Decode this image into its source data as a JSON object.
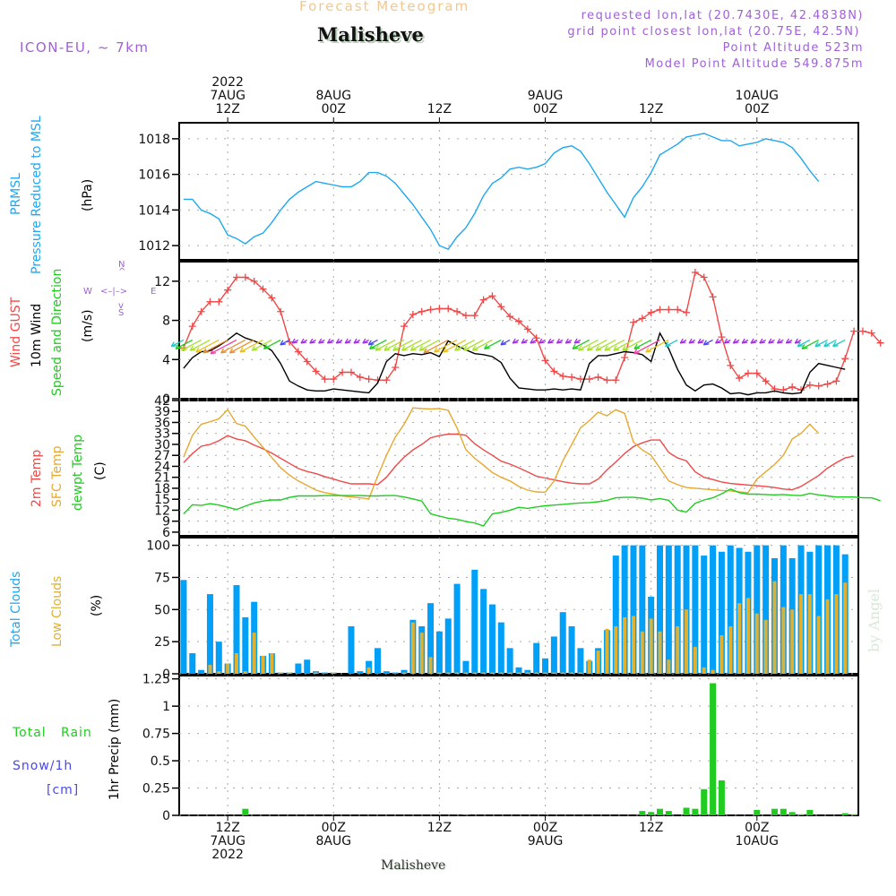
{
  "header": {
    "chart_type_title": "Forecast Meteogram",
    "station": "Malisheve",
    "model": "ICON-EU, ~ 7km",
    "requested": "requested lon,lat (20.7430E, 42.4838N)",
    "grid_point": "grid point closest lon,lat (20.75E, 42.5N)",
    "point_altitude": "Point Altitude 523m",
    "model_altitude": "Model Point Altitude 549.875m",
    "footer_station": "Malisheve",
    "watermark": "by Angel"
  },
  "colors": {
    "pressure": "#1ea8f0",
    "gust": "#f04848",
    "wind": "#000000",
    "t2m": "#f04848",
    "sfc": "#e8a830",
    "dewpt": "#20cc20",
    "total_clouds": "#00a0f8",
    "low_clouds": "#e0b030",
    "rain": "#20cc20",
    "snow": "#4848f0",
    "info": "#a060d8"
  },
  "time_axis": {
    "top_labels": [
      {
        "lines": [
          "2022",
          "7AUG",
          "12Z"
        ],
        "hour": 12
      },
      {
        "lines": [
          "8AUG",
          "00Z"
        ],
        "hour": 24
      },
      {
        "lines": [
          "12Z"
        ],
        "hour": 36
      },
      {
        "lines": [
          "9AUG",
          "00Z"
        ],
        "hour": 48
      },
      {
        "lines": [
          "12Z"
        ],
        "hour": 60
      },
      {
        "lines": [
          "10AUG",
          "00Z"
        ],
        "hour": 72
      }
    ],
    "bottom_labels": [
      {
        "lines": [
          "12Z",
          "7AUG",
          "2022"
        ],
        "hour": 12
      },
      {
        "lines": [
          "00Z",
          "8AUG"
        ],
        "hour": 24
      },
      {
        "lines": [
          "12Z"
        ],
        "hour": 36
      },
      {
        "lines": [
          "00Z",
          "9AUG"
        ],
        "hour": 48
      },
      {
        "lines": [
          "12Z"
        ],
        "hour": 60
      },
      {
        "lines": [
          "00Z",
          "10AUG"
        ],
        "hour": 72
      }
    ],
    "hour_range": [
      6.5,
      83.5
    ],
    "note": "hour = hours since 7AUG 00Z"
  },
  "chart_data": [
    {
      "type": "line",
      "title": "PRMSL Pressure Reduced to MSL",
      "ylabel_lines": [
        "PRMSL",
        "Pressure Reduced to MSL"
      ],
      "unit": "(hPa)",
      "ylim": [
        1011.2,
        1018.9
      ],
      "yticks": [
        1012,
        1014,
        1016,
        1018
      ],
      "x_start_hour": 7,
      "x_step_hours": 1,
      "series": [
        {
          "name": "PRMSL",
          "color_key": "pressure",
          "values": [
            1014.6,
            1014.6,
            1014.0,
            1013.8,
            1013.5,
            1012.6,
            1012.4,
            1012.1,
            1012.5,
            1012.7,
            1013.3,
            1014.0,
            1014.6,
            1015.0,
            1015.3,
            1015.6,
            1015.5,
            1015.4,
            1015.3,
            1015.3,
            1015.6,
            1016.1,
            1016.1,
            1015.9,
            1015.5,
            1014.9,
            1014.3,
            1013.6,
            1012.9,
            1012.0,
            1011.8,
            1012.5,
            1013.0,
            1013.8,
            1014.8,
            1015.5,
            1015.8,
            1016.3,
            1016.4,
            1016.3,
            1016.4,
            1016.6,
            1017.2,
            1017.5,
            1017.6,
            1017.3,
            1016.6,
            1015.8,
            1015.0,
            1014.3,
            1013.6,
            1014.7,
            1015.3,
            1016.1,
            1017.1,
            1017.4,
            1017.7,
            1018.1,
            1018.2,
            1018.3,
            1018.1,
            1017.9,
            1017.9,
            1017.6,
            1017.7,
            1017.8,
            1018.0,
            1017.9,
            1017.8,
            1017.5,
            1016.9,
            1016.2,
            1015.6
          ]
        }
      ]
    },
    {
      "type": "line",
      "title": "Wind GUST / 10m Wind Speed and Direction",
      "ylabel_lines": [
        "Wind GUST",
        "10m Wind",
        "Speed and Direction"
      ],
      "unit": "(m/s)",
      "compass": {
        "n": "N",
        "s": "S",
        "w": "W",
        "e": "E"
      },
      "ylim": [
        0,
        14
      ],
      "yticks": [
        0,
        4,
        8,
        12
      ],
      "x_start_hour": 7,
      "x_step_hours": 1,
      "series": [
        {
          "name": "Wind GUST",
          "color_key": "gust",
          "marker": "+",
          "values": [
            5.2,
            7.4,
            8.9,
            9.9,
            9.9,
            11.1,
            12.4,
            12.4,
            12.0,
            11.2,
            10.3,
            8.9,
            5.8,
            4.8,
            3.8,
            2.8,
            2.0,
            2.0,
            2.7,
            2.7,
            2.2,
            2.0,
            1.9,
            1.9,
            3.2,
            7.4,
            8.6,
            8.9,
            9.1,
            9.2,
            9.2,
            8.9,
            8.5,
            8.5,
            10.1,
            10.5,
            9.4,
            8.4,
            7.9,
            7.1,
            6.2,
            3.9,
            2.8,
            2.3,
            2.2,
            2.0,
            2.0,
            2.2,
            1.9,
            1.9,
            4.2,
            7.8,
            8.2,
            8.8,
            9.1,
            9.1,
            9.1,
            8.8,
            12.9,
            12.4,
            10.4,
            6.3,
            3.4,
            2.1,
            2.6,
            2.6,
            1.8,
            1.0,
            0.9,
            1.2,
            0.9,
            1.4,
            1.3,
            1.5,
            1.8,
            4.1,
            6.9,
            6.9,
            6.7,
            5.7
          ]
        },
        {
          "name": "10m Wind",
          "color_key": "wind",
          "values": [
            3.1,
            4.2,
            4.8,
            4.9,
            5.4,
            6.0,
            6.7,
            6.2,
            5.9,
            5.5,
            4.9,
            3.6,
            1.8,
            1.3,
            0.9,
            0.8,
            0.8,
            1.0,
            0.9,
            0.8,
            0.7,
            0.6,
            1.6,
            3.8,
            4.6,
            4.4,
            4.6,
            4.5,
            4.7,
            4.3,
            5.9,
            5.4,
            5.0,
            4.6,
            4.5,
            4.3,
            3.7,
            2.1,
            1.1,
            1.0,
            0.9,
            0.9,
            1.0,
            0.9,
            1.0,
            0.9,
            3.6,
            4.4,
            4.4,
            4.6,
            4.8,
            4.7,
            4.5,
            3.8,
            6.7,
            5.1,
            3.0,
            1.4,
            0.8,
            1.4,
            1.5,
            1.1,
            0.5,
            0.6,
            0.4,
            0.6,
            0.6,
            0.8,
            0.6,
            0.5,
            0.6,
            2.7,
            3.6,
            3.4,
            3.2,
            3.0
          ]
        }
      ],
      "wind_arrows": "direction arrows plotted along ~6 m/s band; mostly from NE/E (pointing SW/W); colors encode speed"
    },
    {
      "type": "line",
      "title": "2m Temp / SFC Temp / dewpt Temp",
      "ylabel_lines": [
        "2m Temp",
        "SFC Temp",
        "dewpt Temp"
      ],
      "unit": "(C)",
      "ylim": [
        5,
        42
      ],
      "yticks": [
        6,
        9,
        12,
        15,
        18,
        21,
        24,
        27,
        30,
        33,
        36,
        39,
        42
      ],
      "x_start_hour": 7,
      "x_step_hours": 1,
      "series": [
        {
          "name": "2m Temp",
          "color_key": "t2m",
          "values": [
            25.0,
            27.5,
            29.5,
            30.0,
            31.0,
            32.4,
            31.5,
            31.0,
            29.8,
            28.8,
            27.6,
            26.2,
            24.8,
            23.4,
            22.6,
            22.0,
            21.2,
            20.5,
            19.8,
            19.2,
            19.2,
            19.2,
            19.0,
            21.0,
            24.0,
            26.5,
            28.5,
            30.0,
            31.8,
            32.4,
            32.8,
            32.8,
            32.5,
            30.2,
            28.5,
            27.0,
            25.4,
            24.6,
            23.6,
            22.5,
            21.3,
            20.8,
            20.3,
            19.8,
            19.4,
            19.2,
            19.2,
            20.5,
            23.0,
            25.2,
            27.5,
            29.4,
            30.4,
            31.2,
            31.2,
            27.8,
            26.3,
            25.5,
            22.5,
            21.0,
            20.4,
            19.7,
            19.3,
            19.1,
            18.9,
            18.7,
            18.5,
            18.2,
            17.8,
            17.6,
            18.5,
            20.0,
            21.5,
            23.5,
            25.0,
            26.3,
            26.8
          ]
        },
        {
          "name": "SFC Temp",
          "color_key": "sfc",
          "values": [
            26.5,
            32.5,
            35.5,
            36.2,
            37.0,
            39.5,
            35.7,
            35.0,
            32.0,
            29.2,
            26.4,
            23.6,
            21.6,
            20.0,
            18.8,
            17.5,
            16.8,
            16.4,
            15.9,
            15.6,
            15.4,
            15.1,
            21.3,
            27.0,
            32.0,
            35.5,
            40.0,
            39.8,
            39.7,
            39.8,
            39.3,
            34.5,
            28.6,
            26.2,
            24.3,
            22.3,
            21.0,
            20.0,
            18.5,
            17.5,
            17.0,
            16.9,
            20.0,
            25.5,
            30.0,
            34.5,
            36.5,
            38.8,
            37.8,
            39.5,
            38.5,
            30.6,
            28.5,
            27.0,
            23.5,
            20.0,
            19.0,
            18.2,
            18.0,
            17.8,
            17.6,
            17.4,
            17.3,
            17.0,
            16.8,
            20.5,
            22.5,
            24.5,
            27.0,
            31.5,
            33.0,
            35.5,
            33.0
          ]
        },
        {
          "name": "dewpt Temp",
          "color_key": "dewpt",
          "values": [
            11.0,
            13.5,
            13.3,
            13.8,
            13.4,
            12.8,
            12.2,
            13.1,
            14.0,
            14.5,
            14.8,
            14.8,
            15.5,
            15.9,
            15.9,
            15.9,
            16.0,
            16.0,
            16.0,
            16.0,
            16.0,
            15.9,
            15.9,
            16.0,
            16.0,
            15.6,
            15.1,
            14.5,
            11.0,
            10.4,
            9.8,
            9.5,
            8.9,
            8.5,
            7.7,
            11.0,
            11.4,
            12.0,
            12.8,
            12.5,
            12.9,
            13.2,
            13.4,
            13.6,
            13.8,
            14.0,
            14.1,
            14.3,
            14.7,
            15.4,
            15.5,
            15.5,
            15.3,
            14.8,
            15.2,
            14.7,
            12.0,
            11.5,
            13.9,
            14.8,
            15.4,
            16.5,
            17.8,
            16.8,
            16.4,
            16.4,
            16.3,
            16.2,
            16.3,
            16.1,
            16.0,
            16.6,
            16.2,
            15.9,
            15.6,
            15.6,
            15.6,
            15.4,
            15.4,
            14.6
          ]
        }
      ]
    },
    {
      "type": "bar",
      "title": "Total Clouds / Low Clouds",
      "ylabel_lines": [
        "Total Clouds",
        "Low Clouds"
      ],
      "unit": "(%)",
      "ylim": [
        0,
        106
      ],
      "yticks": [
        0,
        25,
        50,
        75,
        100
      ],
      "x_start_hour": 7,
      "x_step_hours": 1,
      "series": [
        {
          "name": "Total Clouds",
          "color_key": "total_clouds",
          "values": [
            73,
            16,
            3,
            62,
            25,
            8,
            69,
            44,
            56,
            14,
            16,
            1,
            1,
            8,
            11,
            2,
            1,
            1,
            0,
            37,
            2,
            10,
            20,
            2,
            1,
            3,
            42,
            37,
            55,
            33,
            43,
            70,
            10,
            81,
            66,
            54,
            40,
            20,
            5,
            3,
            24,
            12,
            29,
            48,
            37,
            20,
            10,
            20,
            34,
            92,
            100,
            100,
            100,
            60,
            100,
            100,
            100,
            100,
            100,
            92,
            100,
            95,
            100,
            98,
            95,
            100,
            100,
            90,
            100,
            90,
            100,
            95,
            100,
            100,
            100,
            93
          ]
        },
        {
          "name": "Low Clouds",
          "color_key": "low_clouds",
          "values": [
            0,
            0,
            0,
            7,
            2,
            8,
            16,
            2,
            32,
            14,
            16,
            1,
            1,
            0,
            0,
            1,
            0,
            1,
            0,
            0,
            0,
            5,
            0,
            0,
            0,
            1,
            40,
            32,
            13,
            1,
            1,
            1,
            1,
            1,
            1,
            1,
            1,
            1,
            1,
            1,
            1,
            1,
            1,
            1,
            1,
            1,
            11,
            18,
            35,
            37,
            44,
            45,
            33,
            43,
            33,
            11,
            37,
            50,
            21,
            5,
            3,
            30,
            37,
            55,
            59,
            47,
            42,
            72,
            52,
            50,
            62,
            62,
            45,
            58,
            62,
            71
          ]
        }
      ]
    },
    {
      "type": "bar",
      "title": "1hr Precip (mm)",
      "ylabel_lines": [
        "Total   Rain",
        "Snow/1h",
        "[cm]"
      ],
      "unit": "1hr Precip (mm)",
      "ylim": [
        0,
        1.28
      ],
      "yticks": [
        0,
        0.25,
        0.5,
        0.75,
        1,
        1.25
      ],
      "ytick_labels": [
        "0",
        "0.25",
        "0.5",
        "0.75",
        "1",
        "1.25"
      ],
      "x_start_hour": 7,
      "x_step_hours": 1,
      "series": [
        {
          "name": "Total Rain",
          "color_key": "rain",
          "values": [
            0,
            0,
            0,
            0,
            0,
            0,
            0,
            0.06,
            0,
            0,
            0,
            0,
            0,
            0,
            0,
            0,
            0,
            0,
            0,
            0,
            0,
            0,
            0,
            0,
            0,
            0,
            0,
            0,
            0,
            0,
            0,
            0,
            0.005,
            0,
            0,
            0,
            0,
            0,
            0,
            0,
            0,
            0,
            0,
            0,
            0,
            0,
            0,
            0,
            0,
            0,
            0,
            0,
            0.04,
            0.03,
            0.06,
            0.04,
            0,
            0.07,
            0.06,
            0.24,
            1.21,
            0.32,
            0,
            0,
            0,
            0.05,
            0,
            0.06,
            0.06,
            0.03,
            0.01,
            0.05,
            0,
            0,
            0,
            0.02,
            0.01,
            0,
            0
          ]
        },
        {
          "name": "Snow/1h",
          "color_key": "snow",
          "values": []
        }
      ]
    }
  ]
}
